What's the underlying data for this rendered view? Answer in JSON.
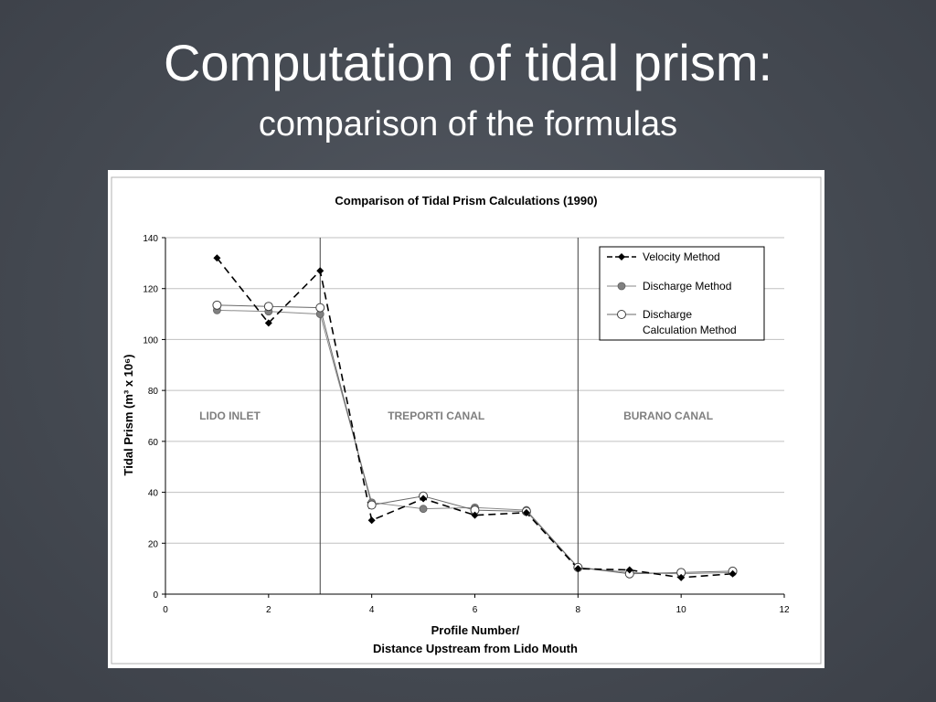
{
  "slide": {
    "title": "Computation of tidal prism:",
    "subtitle": "comparison of the formulas"
  },
  "chart_data": {
    "type": "line",
    "title": "Comparison of Tidal Prism Calculations (1990)",
    "xlabel_line1": "Profile Number/",
    "xlabel_line2": "Distance Upstream from Lido Mouth",
    "ylabel": "Tidal Prism (m³ x 10⁶)",
    "xlim": [
      0,
      12
    ],
    "ylim": [
      0,
      140
    ],
    "x_ticks": [
      0,
      2,
      4,
      6,
      8,
      10,
      12
    ],
    "y_ticks": [
      0,
      20,
      40,
      60,
      80,
      100,
      120,
      140
    ],
    "grid": "horizontal",
    "legend_position": "top-right",
    "region_dividers": [
      3,
      8
    ],
    "regions": [
      {
        "label": "LIDO INLET",
        "x": 1.25,
        "y": 70
      },
      {
        "label": "TREPORTI CANAL",
        "x": 5.25,
        "y": 70
      },
      {
        "label": "BURANO CANAL",
        "x": 9.75,
        "y": 70
      }
    ],
    "series": [
      {
        "name": "Velocity Method",
        "style": "dashed-diamond",
        "color": "#000000",
        "x": [
          1,
          2,
          3,
          4,
          5,
          6,
          7,
          8,
          9,
          10,
          11
        ],
        "y": [
          132,
          106.5,
          127,
          29,
          37.5,
          31,
          32,
          10,
          9.5,
          6.5,
          8
        ]
      },
      {
        "name": "Discharge Method",
        "style": "solid-gray-dot",
        "color": "#7f7f7f",
        "x": [
          1,
          2,
          3,
          4,
          5,
          6,
          7,
          8,
          9,
          10,
          11
        ],
        "y": [
          111.5,
          111,
          110,
          36,
          33.5,
          34,
          33,
          10.5,
          8.5,
          8,
          8.5
        ]
      },
      {
        "name_line1": "Discharge",
        "name_line2": "Calculation Method",
        "style": "solid-open-circle",
        "color": "#555555",
        "x": [
          1,
          2,
          3,
          4,
          5,
          6,
          7,
          8,
          9,
          10,
          11
        ],
        "y": [
          113.5,
          113,
          112.5,
          35,
          38.5,
          33,
          32.5,
          10.5,
          8,
          8.5,
          9
        ]
      }
    ]
  }
}
